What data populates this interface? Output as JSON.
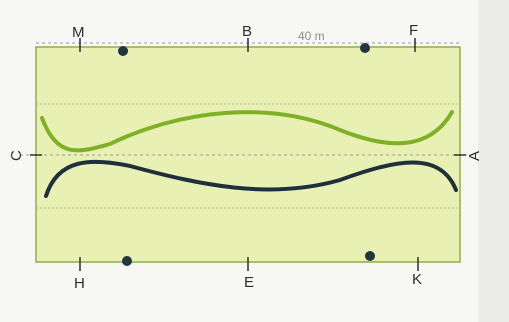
{
  "arena": {
    "width_label": "40 m",
    "fill_color": "#e9f0b4",
    "border_color": "#8fae48"
  },
  "markers": {
    "top": [
      "M",
      "B",
      "F"
    ],
    "bottom": [
      "H",
      "E",
      "K"
    ],
    "left": "C",
    "right": "A"
  },
  "tracks": {
    "upper_color": "#7fb128",
    "lower_color": "#1f2f3c"
  },
  "points": {
    "color": "#1f3540",
    "count": 4
  }
}
